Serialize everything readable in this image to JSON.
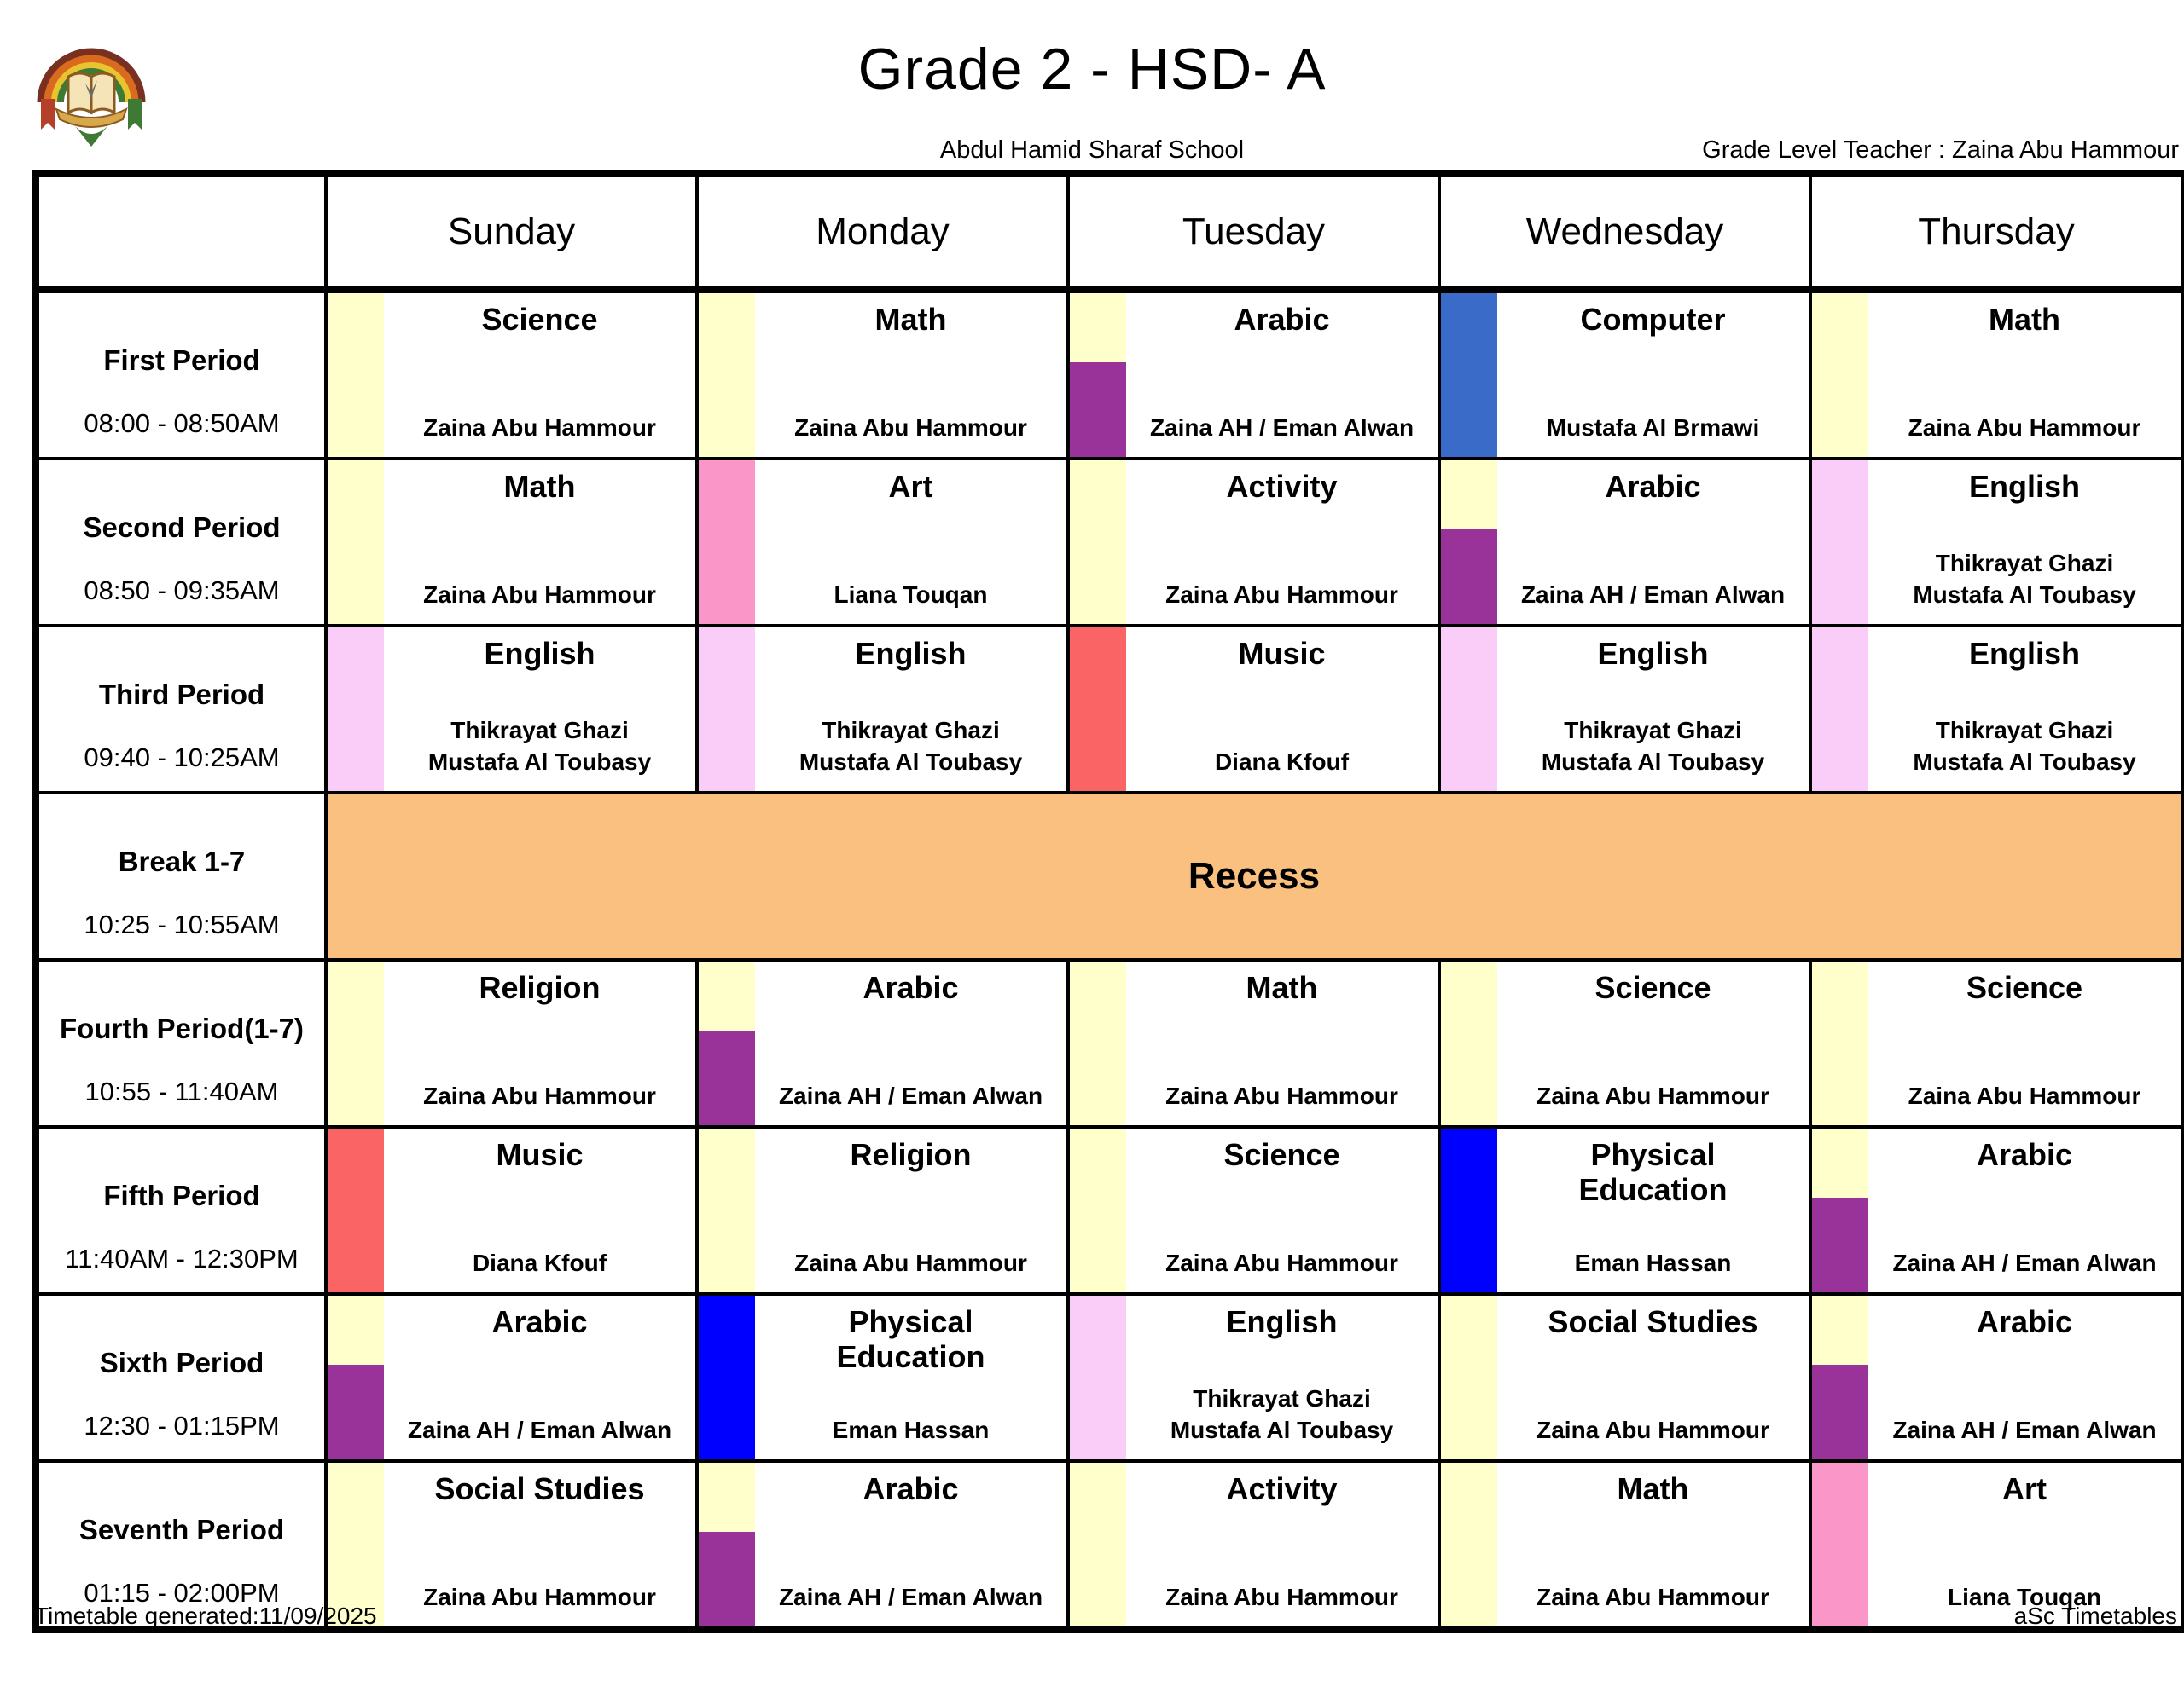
{
  "page": {
    "title": "Grade 2 - HSD- A",
    "school_name": "Abdul Hamid Sharaf School",
    "grade_level_teacher": "Grade Level Teacher : Zaina Abu Hammour",
    "footer_left": "Timetable generated:11/09/2025",
    "footer_right": "aSc Timetables"
  },
  "colors": {
    "yellow": "#FFFFCC",
    "purple": "#993399",
    "royal_blue": "#3A6BC8",
    "blue": "#0000FF",
    "red": "#FA6464",
    "pink": "#FA96C8",
    "light_pink": "#FACCF8",
    "orange": "#FAC080"
  },
  "days": [
    "Sunday",
    "Monday",
    "Tuesday",
    "Wednesday",
    "Thursday"
  ],
  "rows": [
    {
      "type": "lessons",
      "period": "First Period",
      "time": "08:00 - 08:50AM",
      "cells": [
        {
          "subject": "Science",
          "teacher": [
            "Zaina Abu Hammour"
          ],
          "stripe": [
            "yellow"
          ]
        },
        {
          "subject": "Math",
          "teacher": [
            "Zaina Abu Hammour"
          ],
          "stripe": [
            "yellow"
          ]
        },
        {
          "subject": "Arabic",
          "teacher": [
            "Zaina AH / Eman Alwan"
          ],
          "stripe": [
            "yellow",
            "purple"
          ]
        },
        {
          "subject": "Computer",
          "teacher": [
            "Mustafa Al Brmawi"
          ],
          "stripe": [
            "royal_blue"
          ]
        },
        {
          "subject": "Math",
          "teacher": [
            "Zaina Abu Hammour"
          ],
          "stripe": [
            "yellow"
          ]
        }
      ]
    },
    {
      "type": "lessons",
      "period": "Second Period",
      "time": "08:50 - 09:35AM",
      "cells": [
        {
          "subject": "Math",
          "teacher": [
            "Zaina Abu Hammour"
          ],
          "stripe": [
            "yellow"
          ]
        },
        {
          "subject": "Art",
          "teacher": [
            "Liana Touqan"
          ],
          "stripe": [
            "pink"
          ]
        },
        {
          "subject": "Activity",
          "teacher": [
            "Zaina Abu Hammour"
          ],
          "stripe": [
            "yellow"
          ]
        },
        {
          "subject": "Arabic",
          "teacher": [
            "Zaina AH / Eman Alwan"
          ],
          "stripe": [
            "yellow",
            "purple"
          ]
        },
        {
          "subject": "English",
          "teacher": [
            "Thikrayat Ghazi",
            "Mustafa Al Toubasy"
          ],
          "stripe": [
            "light_pink"
          ]
        }
      ]
    },
    {
      "type": "lessons",
      "period": "Third Period",
      "time": "09:40 - 10:25AM",
      "cells": [
        {
          "subject": "English",
          "teacher": [
            "Thikrayat Ghazi",
            "Mustafa Al Toubasy"
          ],
          "stripe": [
            "light_pink"
          ]
        },
        {
          "subject": "English",
          "teacher": [
            "Thikrayat Ghazi",
            "Mustafa Al Toubasy"
          ],
          "stripe": [
            "light_pink"
          ]
        },
        {
          "subject": "Music",
          "teacher": [
            "Diana Kfouf"
          ],
          "stripe": [
            "red"
          ]
        },
        {
          "subject": "English",
          "teacher": [
            "Thikrayat Ghazi",
            "Mustafa Al Toubasy"
          ],
          "stripe": [
            "light_pink"
          ]
        },
        {
          "subject": "English",
          "teacher": [
            "Thikrayat Ghazi",
            "Mustafa Al Toubasy"
          ],
          "stripe": [
            "light_pink"
          ]
        }
      ]
    },
    {
      "type": "break",
      "period": "Break 1-7",
      "time": "10:25 - 10:55AM",
      "label": "Recess"
    },
    {
      "type": "lessons",
      "period": "Fourth Period(1-7)",
      "time": "10:55 - 11:40AM",
      "cells": [
        {
          "subject": "Religion",
          "teacher": [
            "Zaina Abu Hammour"
          ],
          "stripe": [
            "yellow"
          ]
        },
        {
          "subject": "Arabic",
          "teacher": [
            "Zaina AH / Eman Alwan"
          ],
          "stripe": [
            "yellow",
            "purple"
          ]
        },
        {
          "subject": "Math",
          "teacher": [
            "Zaina Abu Hammour"
          ],
          "stripe": [
            "yellow"
          ]
        },
        {
          "subject": "Science",
          "teacher": [
            "Zaina Abu Hammour"
          ],
          "stripe": [
            "yellow"
          ]
        },
        {
          "subject": "Science",
          "teacher": [
            "Zaina Abu Hammour"
          ],
          "stripe": [
            "yellow"
          ]
        }
      ]
    },
    {
      "type": "lessons",
      "period": "Fifth Period",
      "time": "11:40AM - 12:30PM",
      "cells": [
        {
          "subject": "Music",
          "teacher": [
            "Diana Kfouf"
          ],
          "stripe": [
            "red"
          ]
        },
        {
          "subject": "Religion",
          "teacher": [
            "Zaina Abu Hammour"
          ],
          "stripe": [
            "yellow"
          ]
        },
        {
          "subject": "Science",
          "teacher": [
            "Zaina Abu Hammour"
          ],
          "stripe": [
            "yellow"
          ]
        },
        {
          "subject": "Physical Education",
          "teacher": [
            "Eman Hassan"
          ],
          "stripe": [
            "blue"
          ]
        },
        {
          "subject": "Arabic",
          "teacher": [
            "Zaina AH / Eman Alwan"
          ],
          "stripe": [
            "yellow",
            "purple"
          ]
        }
      ]
    },
    {
      "type": "lessons",
      "period": "Sixth Period",
      "time": "12:30 - 01:15PM",
      "cells": [
        {
          "subject": "Arabic",
          "teacher": [
            "Zaina AH / Eman Alwan"
          ],
          "stripe": [
            "yellow",
            "purple"
          ]
        },
        {
          "subject": "Physical Education",
          "teacher": [
            "Eman Hassan"
          ],
          "stripe": [
            "blue"
          ]
        },
        {
          "subject": "English",
          "teacher": [
            "Thikrayat Ghazi",
            "Mustafa Al Toubasy"
          ],
          "stripe": [
            "light_pink"
          ]
        },
        {
          "subject": "Social Studies",
          "teacher": [
            "Zaina Abu Hammour"
          ],
          "stripe": [
            "yellow"
          ]
        },
        {
          "subject": "Arabic",
          "teacher": [
            "Zaina AH / Eman Alwan"
          ],
          "stripe": [
            "yellow",
            "purple"
          ]
        }
      ]
    },
    {
      "type": "lessons",
      "period": "Seventh Period",
      "time": "01:15 - 02:00PM",
      "cells": [
        {
          "subject": "Social Studies",
          "teacher": [
            "Zaina Abu Hammour"
          ],
          "stripe": [
            "yellow"
          ]
        },
        {
          "subject": "Arabic",
          "teacher": [
            "Zaina AH / Eman Alwan"
          ],
          "stripe": [
            "yellow",
            "purple"
          ]
        },
        {
          "subject": "Activity",
          "teacher": [
            "Zaina Abu Hammour"
          ],
          "stripe": [
            "yellow"
          ]
        },
        {
          "subject": "Math",
          "teacher": [
            "Zaina Abu Hammour"
          ],
          "stripe": [
            "yellow"
          ]
        },
        {
          "subject": "Art",
          "teacher": [
            "Liana Touqan"
          ],
          "stripe": [
            "pink"
          ]
        }
      ]
    }
  ]
}
